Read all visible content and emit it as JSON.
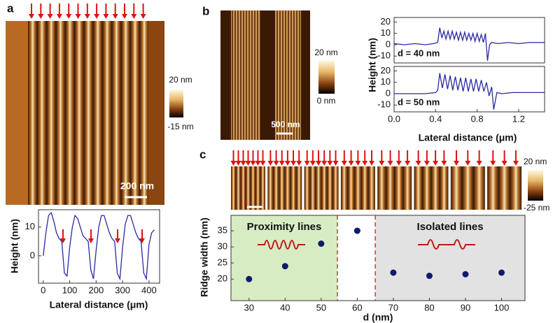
{
  "figure": {
    "panel_labels": [
      "a",
      "b",
      "c"
    ],
    "image_a": {
      "scale_bar": "200 nm",
      "colorbar": [
        "20 nm",
        "-15 nm"
      ]
    },
    "image_b": {
      "scale_bar": "500 nm",
      "colorbar": [
        "20 nm",
        "0 nm"
      ]
    },
    "image_c": {
      "colorbar": [
        "20 nm",
        "-25 nm"
      ]
    }
  },
  "chart_data": [
    {
      "type": "line",
      "xlabel": "Lateral distance (μm)",
      "ylabel": "Height (nm)",
      "x": [
        0,
        10,
        20,
        30,
        40,
        50,
        60,
        70,
        80,
        90,
        100,
        110,
        120,
        130,
        140,
        150,
        160,
        170,
        180,
        190,
        200,
        210,
        220,
        230,
        240,
        250,
        260,
        270,
        280,
        290,
        300,
        310,
        320,
        330,
        340,
        350,
        360,
        370,
        380,
        390,
        400,
        410,
        420
      ],
      "series": [
        {
          "color": "#2a2aa0",
          "values": [
            0,
            8,
            14,
            15,
            12,
            8,
            6,
            5,
            -6,
            -7,
            3,
            10,
            14,
            13,
            10,
            7,
            6,
            5,
            -5,
            -8,
            2,
            10,
            14,
            14,
            11,
            8,
            6,
            5,
            -6,
            -8,
            3,
            11,
            14,
            14,
            11,
            8,
            6,
            5,
            -6,
            -8,
            4,
            8,
            9
          ]
        }
      ],
      "xlim": [
        -18,
        440
      ],
      "ylim": [
        -9.5,
        16
      ],
      "xticks": [
        0,
        100,
        200,
        300,
        400
      ],
      "yticks": [
        0,
        10
      ]
    },
    {
      "type": "line",
      "ylabel": "Height (nm)",
      "annotation": "d = 40 nm",
      "x": [
        0,
        0.1,
        0.2,
        0.3,
        0.38,
        0.42,
        0.44,
        0.46,
        0.48,
        0.5,
        0.52,
        0.54,
        0.56,
        0.58,
        0.6,
        0.62,
        0.64,
        0.66,
        0.68,
        0.7,
        0.72,
        0.74,
        0.76,
        0.78,
        0.8,
        0.82,
        0.84,
        0.86,
        0.88,
        0.9,
        0.92,
        0.94,
        1.0,
        1.1,
        1.2,
        1.3,
        1.45
      ],
      "series": [
        {
          "color": "#2a2aa0",
          "values": [
            1,
            0,
            1,
            0,
            1,
            2,
            15,
            6,
            12,
            5,
            12,
            5,
            12,
            5,
            11,
            4,
            11,
            4,
            11,
            4,
            10,
            4,
            10,
            3,
            10,
            3,
            9,
            2,
            10,
            -14,
            0,
            2,
            1,
            2,
            1,
            2,
            2
          ]
        }
      ],
      "xlim": [
        0,
        1.45
      ],
      "ylim": [
        -16,
        24
      ],
      "yticks": [
        -10,
        0,
        10,
        20
      ]
    },
    {
      "type": "line",
      "xlabel": "Lateral distance (μm)",
      "annotation": "d = 50 nm",
      "x": [
        0,
        0.1,
        0.2,
        0.3,
        0.4,
        0.42,
        0.44,
        0.465,
        0.49,
        0.515,
        0.54,
        0.565,
        0.59,
        0.615,
        0.64,
        0.665,
        0.69,
        0.715,
        0.74,
        0.765,
        0.79,
        0.815,
        0.84,
        0.865,
        0.89,
        0.915,
        0.94,
        0.96,
        0.99,
        1.04,
        1.14,
        1.24,
        1.34,
        1.45
      ],
      "series": [
        {
          "color": "#2a2aa0",
          "values": [
            0,
            0,
            0,
            0,
            1,
            3,
            18,
            5,
            17,
            4,
            16,
            3,
            15,
            3,
            14,
            2,
            14,
            2,
            13,
            2,
            13,
            2,
            12,
            2,
            10,
            -2,
            6,
            -14,
            1,
            0,
            1,
            1,
            1,
            1
          ]
        }
      ],
      "xlim": [
        0,
        1.45
      ],
      "ylim": [
        -16,
        24
      ],
      "xticks": [
        {
          "value": 0,
          "label": "0.0"
        },
        0.4,
        0.8,
        1.2
      ],
      "yticks": [
        -10,
        0,
        10,
        20
      ]
    },
    {
      "type": "scatter",
      "xlabel": "d (nm)",
      "ylabel": "Ridge width (nm)",
      "x": [
        30,
        40,
        50,
        60,
        70,
        80,
        90,
        100
      ],
      "values": [
        20,
        24,
        31,
        35,
        22,
        21,
        21.5,
        22
      ],
      "color": "#0d1a6e",
      "regions": [
        {
          "label": "Proximity lines",
          "range": [
            25,
            54.5
          ],
          "color": "#d8ecc4"
        },
        {
          "label": "Isolated lines",
          "range": [
            65,
            106.5
          ],
          "color": "#e2e2e2"
        }
      ],
      "xlim": [
        25,
        106.5
      ],
      "ylim": [
        13.3,
        39.8
      ],
      "xticks": [
        30,
        40,
        50,
        60,
        70,
        80,
        90,
        100
      ],
      "yticks": [
        20,
        25,
        30,
        35
      ]
    }
  ]
}
